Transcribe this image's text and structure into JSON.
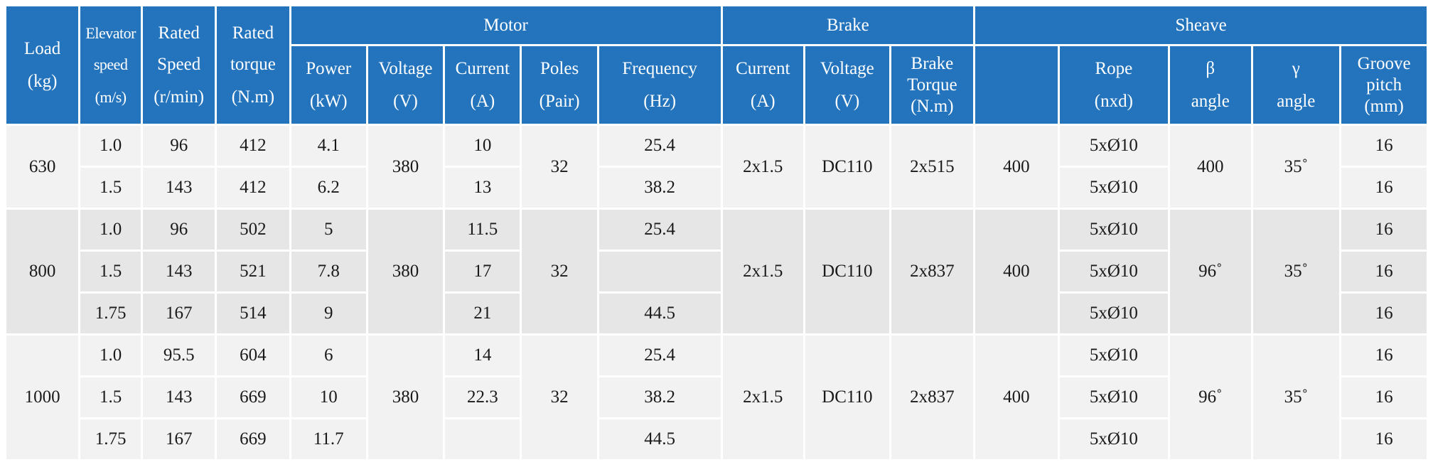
{
  "headers": {
    "load": [
      "Load",
      "(kg)"
    ],
    "elevator_speed": [
      "Elevator",
      "speed",
      "(m/s)"
    ],
    "rated_speed": [
      "Rated",
      "Speed",
      "(r/min)"
    ],
    "rated_torque": [
      "Rated",
      "torque",
      "(N.m)"
    ],
    "motor": "Motor",
    "brake": "Brake",
    "sheave": "Sheave",
    "motor_power": [
      "Power",
      "(kW)"
    ],
    "motor_voltage": [
      "Voltage",
      "(V)"
    ],
    "motor_current": [
      "Current",
      "(A)"
    ],
    "motor_poles": [
      "Poles",
      "(Pair)"
    ],
    "motor_frequency": [
      "Frequency",
      "(Hz)"
    ],
    "brake_current": [
      "Current",
      "(A)"
    ],
    "brake_voltage": [
      "Voltage",
      "(V)"
    ],
    "brake_torque": [
      "Brake",
      "Torque",
      "(N.m)"
    ],
    "sheave_blank": "",
    "rope": [
      "Rope",
      "(nxd)"
    ],
    "beta": [
      "β",
      "angle"
    ],
    "gamma": [
      "γ",
      "angle"
    ],
    "groove": [
      "Groove",
      "pitch",
      "(mm)"
    ]
  },
  "groups": [
    {
      "load": "630",
      "voltage": "380",
      "poles": "32",
      "brake_current": "2x1.5",
      "brake_voltage": "DC110",
      "brake_torque": "2x515",
      "sheave": "400",
      "beta": "400",
      "gamma": "35˚",
      "rows": [
        {
          "speed": "1.0",
          "rated_speed": "96",
          "torque": "412",
          "power": "4.1",
          "current": "10",
          "frequency": "25.4",
          "rope": "5xØ10",
          "groove": "16"
        },
        {
          "speed": "1.5",
          "rated_speed": "143",
          "torque": "412",
          "power": "6.2",
          "current": "13",
          "frequency": "38.2",
          "rope": "5xØ10",
          "groove": "16"
        }
      ]
    },
    {
      "load": "800",
      "voltage": "380",
      "poles": "32",
      "brake_current": "2x1.5",
      "brake_voltage": "DC110",
      "brake_torque": "2x837",
      "sheave": "400",
      "beta": "96˚",
      "gamma": "35˚",
      "rows": [
        {
          "speed": "1.0",
          "rated_speed": "96",
          "torque": "502",
          "power": "5",
          "current": "11.5",
          "frequency": "25.4",
          "rope": "5xØ10",
          "groove": "16"
        },
        {
          "speed": "1.5",
          "rated_speed": "143",
          "torque": "521",
          "power": "7.8",
          "current": "17",
          "frequency": "",
          "rope": "5xØ10",
          "groove": "16"
        },
        {
          "speed": "1.75",
          "rated_speed": "167",
          "torque": "514",
          "power": "9",
          "current": "21",
          "frequency": "44.5",
          "rope": "5xØ10",
          "groove": "16"
        }
      ]
    },
    {
      "load": "1000",
      "voltage": "380",
      "poles": "32",
      "brake_current": "2x1.5",
      "brake_voltage": "DC110",
      "brake_torque": "2x837",
      "sheave": "400",
      "beta": "96˚",
      "gamma": "35˚",
      "rows": [
        {
          "speed": "1.0",
          "rated_speed": "95.5",
          "torque": "604",
          "power": "6",
          "current": "14",
          "frequency": "25.4",
          "rope": "5xØ10",
          "groove": "16"
        },
        {
          "speed": "1.5",
          "rated_speed": "143",
          "torque": "669",
          "power": "10",
          "current": "22.3",
          "frequency": "38.2",
          "rope": "5xØ10",
          "groove": "16"
        },
        {
          "speed": "1.75",
          "rated_speed": "167",
          "torque": "669",
          "power": "11.7",
          "current": "",
          "frequency": "44.5",
          "rope": "5xØ10",
          "groove": "16"
        }
      ]
    }
  ]
}
